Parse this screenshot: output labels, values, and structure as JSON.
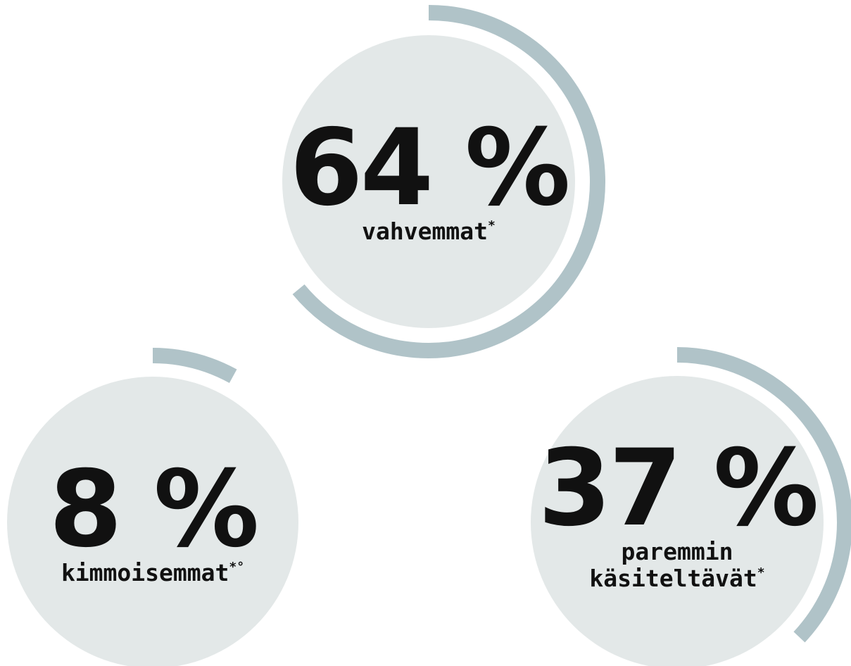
{
  "chart_data": [
    {
      "type": "radial",
      "values": [
        64
      ],
      "value_labels": [
        "64 %"
      ],
      "caption": [
        "vahvemmat"
      ],
      "footnote": "*",
      "color": "#b0c3c8",
      "background": "#e3e8e8",
      "max": 100
    },
    {
      "type": "radial",
      "values": [
        8
      ],
      "value_labels": [
        "8 %"
      ],
      "caption": [
        "kimmoisemmat"
      ],
      "footnote": "*°",
      "color": "#b0c3c8",
      "background": "#e3e8e8",
      "max": 100
    },
    {
      "type": "radial",
      "values": [
        37
      ],
      "value_labels": [
        "37 %"
      ],
      "caption": [
        "paremmin",
        "käsiteltävät"
      ],
      "footnote": "*",
      "color": "#b0c3c8",
      "background": "#e3e8e8",
      "max": 100
    }
  ]
}
